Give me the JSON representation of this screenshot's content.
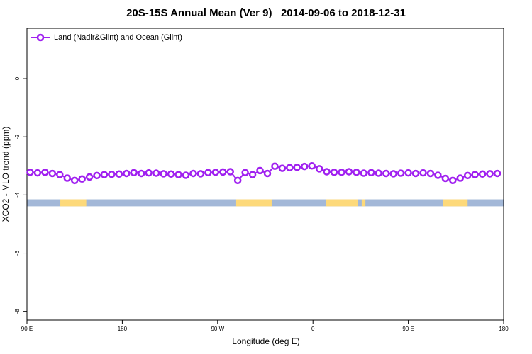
{
  "chart_data": {
    "type": "line",
    "title": "20S-15S Annual Mean (Ver 9)   2014-09-06 to 2018-12-31",
    "x_label": "Longitude (deg E)",
    "y_label": "XCO2 - MLO trend (ppm)",
    "xlim": [
      90,
      540
    ],
    "ylim": [
      -8.3,
      1.73
    ],
    "xticks": [
      {
        "value": 90,
        "label": "90 E"
      },
      180,
      {
        "value": 270,
        "label": "90 W"
      },
      {
        "value": 360,
        "label": "0"
      },
      {
        "value": 450,
        "label": "90 E"
      },
      {
        "value": 540,
        "label": "180"
      }
    ],
    "yticks": [
      0,
      -2,
      -4,
      -6,
      -8
    ],
    "legend_position": "top-left",
    "x": [
      93,
      100,
      107,
      114,
      121,
      128,
      135,
      142,
      149,
      156,
      163,
      170,
      177,
      184,
      191,
      198,
      205,
      212,
      219,
      226,
      233,
      240,
      247,
      254,
      261,
      268,
      275,
      282,
      289,
      296,
      303,
      310,
      317,
      324,
      331,
      338,
      345,
      352,
      359,
      366,
      373,
      380,
      387,
      394,
      401,
      408,
      415,
      422,
      429,
      436,
      443,
      450,
      457,
      464,
      471,
      478,
      485,
      492,
      499,
      506,
      513,
      520,
      527,
      534
    ],
    "series": [
      {
        "name": "Land (Nadir&Glint) and Ocean (Glint)",
        "color": "#a020f0",
        "values": [
          -3.22,
          -3.24,
          -3.22,
          -3.26,
          -3.3,
          -3.42,
          -3.5,
          -3.45,
          -3.38,
          -3.33,
          -3.3,
          -3.29,
          -3.28,
          -3.26,
          -3.23,
          -3.26,
          -3.24,
          -3.25,
          -3.27,
          -3.28,
          -3.3,
          -3.32,
          -3.26,
          -3.27,
          -3.23,
          -3.22,
          -3.21,
          -3.2,
          -3.5,
          -3.23,
          -3.3,
          -3.16,
          -3.26,
          -3.01,
          -3.08,
          -3.06,
          -3.05,
          -3.02,
          -3.0,
          -3.1,
          -3.2,
          -3.22,
          -3.22,
          -3.2,
          -3.22,
          -3.25,
          -3.23,
          -3.25,
          -3.26,
          -3.27,
          -3.25,
          -3.24,
          -3.26,
          -3.24,
          -3.26,
          -3.32,
          -3.43,
          -3.5,
          -3.42,
          -3.33,
          -3.3,
          -3.28,
          -3.27,
          -3.26
        ]
      }
    ],
    "surface_strip": {
      "ymin": -4.39,
      "ymax": -4.15,
      "ocean_color": "#a3b8d8",
      "land_color": "#fdd97a",
      "land": [
        [
          121.5,
          146
        ],
        [
          287.5,
          321
        ],
        [
          372.5,
          402.5
        ],
        [
          406,
          409.5
        ],
        [
          483,
          506
        ]
      ]
    }
  }
}
